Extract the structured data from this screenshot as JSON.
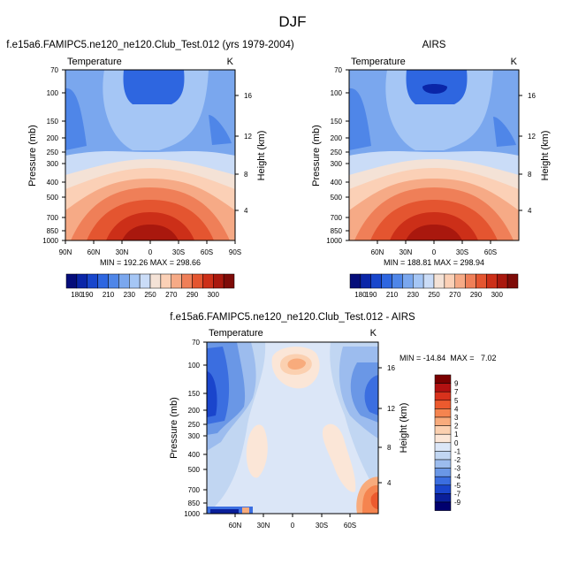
{
  "title": "DJF",
  "chart_data": [
    {
      "type": "heatmap",
      "title": "f.e15a6.FAMIPC5.ne120_ne120.Club_Test.012 (yrs 1979-2004)",
      "variable": "Temperature",
      "units": "K",
      "ylabel": "Pressure (mb)",
      "ylabel_right": "Height (km)",
      "x_ticks": [
        "90N",
        "60N",
        "30N",
        "0",
        "30S",
        "60S",
        "90S"
      ],
      "y_ticks": [
        "70",
        "100",
        "150",
        "200",
        "250",
        "300",
        "400",
        "500",
        "700",
        "850",
        "1000"
      ],
      "y_right_ticks": [
        "16",
        "12",
        "8",
        "4"
      ],
      "stats": "MIN = 192.26  MAX = 298.66",
      "colorbar_labels": [
        "180",
        "190",
        "210",
        "230",
        "250",
        "270",
        "290",
        "300"
      ],
      "values_K": {
        "min": 192.26,
        "max": 298.66
      },
      "pressure_range_mb": [
        70,
        1000
      ],
      "lat_range": [
        "90N",
        "90S"
      ]
    },
    {
      "type": "heatmap",
      "title": "AIRS",
      "variable": "Temperature",
      "units": "K",
      "ylabel": "Pressure (mb)",
      "ylabel_right": "Height (km)",
      "x_ticks": [
        "60N",
        "30N",
        "0",
        "30S",
        "60S"
      ],
      "y_ticks": [
        "70",
        "100",
        "150",
        "200",
        "250",
        "300",
        "400",
        "500",
        "700",
        "850",
        "1000"
      ],
      "y_right_ticks": [
        "16",
        "12",
        "8",
        "4"
      ],
      "stats": "MIN = 188.81  MAX = 298.94",
      "colorbar_labels": [
        "180",
        "190",
        "210",
        "230",
        "250",
        "270",
        "290",
        "300"
      ],
      "values_K": {
        "min": 188.81,
        "max": 298.94
      }
    },
    {
      "type": "heatmap",
      "title": "f.e15a6.FAMIPC5.ne120_ne120.Club_Test.012 - AIRS",
      "variable": "Temperature",
      "units": "K",
      "ylabel": "Pressure (mb)",
      "ylabel_right": "Height (km)",
      "x_ticks": [
        "60N",
        "30N",
        "0",
        "30S",
        "60S"
      ],
      "y_ticks": [
        "70",
        "100",
        "150",
        "200",
        "250",
        "300",
        "400",
        "500",
        "700",
        "850",
        "1000"
      ],
      "y_right_ticks": [
        "16",
        "12",
        "8",
        "4"
      ],
      "stats": "MIN = -14.84  MAX =   7.02",
      "colorbar_labels": [
        "9",
        "7",
        "5",
        "4",
        "3",
        "2",
        "1",
        "0",
        "-1",
        "-2",
        "-3",
        "-4",
        "-5",
        "-7",
        "-9"
      ],
      "values_K": {
        "min": -14.84,
        "max": 7.02
      }
    }
  ],
  "colors": {
    "abs_scale": [
      "#050d7a",
      "#0a26a8",
      "#1846cc",
      "#2e66e0",
      "#4f86e8",
      "#7aa7ee",
      "#a5c6f5",
      "#cadcf7",
      "#f4e2d6",
      "#fbd0b6",
      "#f6aa86",
      "#ef7f58",
      "#e45530",
      "#cc2f18",
      "#a9180e",
      "#7e0b08"
    ],
    "diff_scale": [
      "#7a0000",
      "#b21111",
      "#d8321c",
      "#ec5a2e",
      "#f5844f",
      "#f8ab7c",
      "#fbd0b0",
      "#fbe6d7",
      "#dbe6f7",
      "#c1d6f2",
      "#9cbcee",
      "#6a97e6",
      "#3b6ee0",
      "#1a45cc",
      "#0a1f9a",
      "#00006e"
    ]
  }
}
